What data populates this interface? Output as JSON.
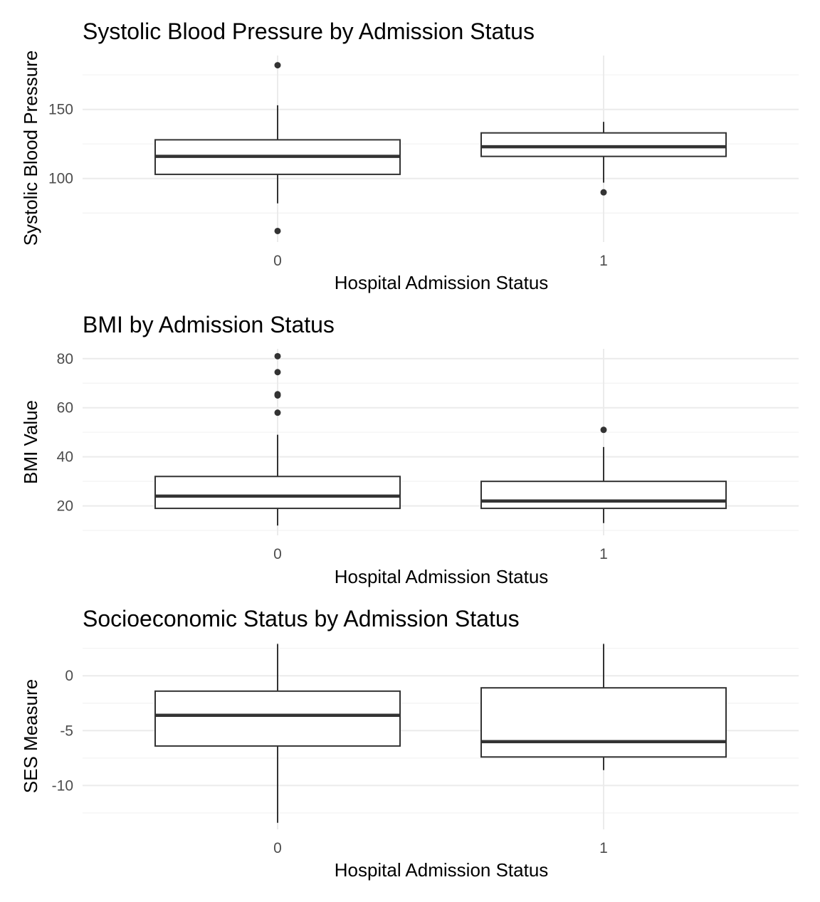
{
  "chart_data": [
    {
      "type": "boxplot",
      "title": "Systolic Blood Pressure by Admission Status",
      "xlabel": "Hospital Admission Status",
      "ylabel": "Systolic Blood Pressure",
      "categories": [
        "0",
        "1"
      ],
      "ylim": [
        54,
        189
      ],
      "yticks": [
        100,
        150
      ],
      "yticks_minor": [
        75,
        125,
        175
      ],
      "boxes": [
        {
          "category": "0",
          "whisker_low": 82,
          "q1": 103,
          "median": 116,
          "q3": 128,
          "whisker_high": 153,
          "outliers": [
            182,
            62
          ]
        },
        {
          "category": "1",
          "whisker_low": 97,
          "q1": 116,
          "median": 123,
          "q3": 133,
          "whisker_high": 141,
          "outliers": [
            90
          ]
        }
      ],
      "grid": true
    },
    {
      "type": "boxplot",
      "title": "BMI by Admission Status",
      "xlabel": "Hospital Admission Status",
      "ylabel": "BMI Value",
      "categories": [
        "0",
        "1"
      ],
      "ylim": [
        8,
        84
      ],
      "yticks": [
        20,
        40,
        60,
        80
      ],
      "yticks_minor": [
        10,
        30,
        50,
        70
      ],
      "boxes": [
        {
          "category": "0",
          "whisker_low": 12,
          "q1": 19,
          "median": 24,
          "q3": 32,
          "whisker_high": 49,
          "outliers": [
            81,
            74.5,
            65.5,
            65,
            58
          ]
        },
        {
          "category": "1",
          "whisker_low": 13,
          "q1": 19,
          "median": 22,
          "q3": 30,
          "whisker_high": 44,
          "outliers": [
            51
          ]
        }
      ],
      "grid": true
    },
    {
      "type": "boxplot",
      "title": "Socioeconomic Status by Admission Status",
      "xlabel": "Hospital Admission Status",
      "ylabel": "SES Measure",
      "categories": [
        "0",
        "1"
      ],
      "ylim": [
        -14,
        3
      ],
      "yticks": [
        0,
        -5,
        -10
      ],
      "yticks_minor": [
        2.5,
        -2.5,
        -7.5,
        -12.5
      ],
      "boxes": [
        {
          "category": "0",
          "whisker_low": -13.4,
          "q1": -6.4,
          "median": -3.6,
          "q3": -1.4,
          "whisker_high": 2.9,
          "outliers": []
        },
        {
          "category": "1",
          "whisker_low": -8.6,
          "q1": -7.4,
          "median": -6.0,
          "q3": -1.1,
          "whisker_high": 2.9,
          "outliers": []
        }
      ],
      "grid": true
    }
  ]
}
